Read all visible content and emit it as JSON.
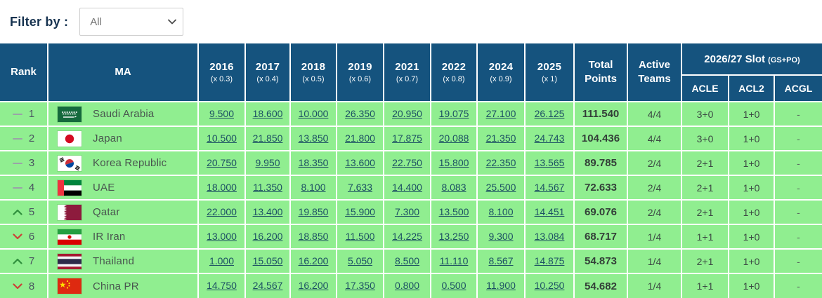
{
  "filter": {
    "label": "Filter by :",
    "selected_option": "All"
  },
  "colors": {
    "header_bg": "#15537e",
    "row_bg": "#90ee90",
    "link_text": "#1c5063",
    "trend_up": "#2f8f3c",
    "trend_down": "#cc4136",
    "trend_same": "#9aa3a7"
  },
  "table": {
    "headers": {
      "rank": "Rank",
      "ma": "MA",
      "total": "Total Points",
      "active": "Active Teams",
      "slot": "2026/27 Slot",
      "slot_suffix": "(GS+PO)"
    },
    "year_columns": [
      {
        "year": "2016",
        "mult": "(x 0.3)"
      },
      {
        "year": "2017",
        "mult": "(x 0.4)"
      },
      {
        "year": "2018",
        "mult": "(x 0.5)"
      },
      {
        "year": "2019",
        "mult": "(x 0.6)"
      },
      {
        "year": "2021",
        "mult": "(x 0.7)"
      },
      {
        "year": "2022",
        "mult": "(x 0.8)"
      },
      {
        "year": "2024",
        "mult": "(x 0.9)"
      },
      {
        "year": "2025",
        "mult": "(x 1)"
      }
    ],
    "slot_columns": [
      "ACLE",
      "ACL2",
      "ACGL"
    ],
    "rows": [
      {
        "trend": "same",
        "rank": "1",
        "flag": "sa",
        "country": "Saudi Arabia",
        "values": [
          "9.500",
          "18.600",
          "10.000",
          "26.350",
          "20.950",
          "19.075",
          "27.100",
          "26.125"
        ],
        "total": "111.540",
        "active": "4/4",
        "acle": "3+0",
        "acl2": "1+0",
        "acgl": "-"
      },
      {
        "trend": "same",
        "rank": "2",
        "flag": "jp",
        "country": "Japan",
        "values": [
          "10.500",
          "21.850",
          "13.850",
          "21.800",
          "17.875",
          "20.088",
          "21.350",
          "24.743"
        ],
        "total": "104.436",
        "active": "4/4",
        "acle": "3+0",
        "acl2": "1+0",
        "acgl": "-"
      },
      {
        "trend": "same",
        "rank": "3",
        "flag": "kr",
        "country": "Korea Republic",
        "values": [
          "20.750",
          "9.950",
          "18.350",
          "13.600",
          "22.750",
          "15.800",
          "22.350",
          "13.565"
        ],
        "total": "89.785",
        "active": "2/4",
        "acle": "2+1",
        "acl2": "1+0",
        "acgl": "-"
      },
      {
        "trend": "same",
        "rank": "4",
        "flag": "ae",
        "country": "UAE",
        "values": [
          "18.000",
          "11.350",
          "8.100",
          "7.633",
          "14.400",
          "8.083",
          "25.500",
          "14.567"
        ],
        "total": "72.633",
        "active": "2/4",
        "acle": "2+1",
        "acl2": "1+0",
        "acgl": "-"
      },
      {
        "trend": "up",
        "rank": "5",
        "flag": "qa",
        "country": "Qatar",
        "values": [
          "22.000",
          "13.400",
          "19.850",
          "15.900",
          "7.300",
          "13.500",
          "8.100",
          "14.451"
        ],
        "total": "69.076",
        "active": "2/4",
        "acle": "2+1",
        "acl2": "1+0",
        "acgl": "-"
      },
      {
        "trend": "down",
        "rank": "6",
        "flag": "ir",
        "country": "IR Iran",
        "values": [
          "13.000",
          "16.200",
          "18.850",
          "11.500",
          "14.225",
          "13.250",
          "9.300",
          "13.084"
        ],
        "total": "68.717",
        "active": "1/4",
        "acle": "1+1",
        "acl2": "1+0",
        "acgl": "-"
      },
      {
        "trend": "up",
        "rank": "7",
        "flag": "th",
        "country": "Thailand",
        "values": [
          "1.000",
          "15.050",
          "16.200",
          "5.050",
          "8.500",
          "11.110",
          "8.567",
          "14.875"
        ],
        "total": "54.873",
        "active": "1/4",
        "acle": "2+1",
        "acl2": "1+0",
        "acgl": "-"
      },
      {
        "trend": "down",
        "rank": "8",
        "flag": "cn",
        "country": "China PR",
        "values": [
          "14.750",
          "24.567",
          "16.200",
          "17.350",
          "0.800",
          "0.500",
          "11.900",
          "10.250"
        ],
        "total": "54.682",
        "active": "1/4",
        "acle": "1+1",
        "acl2": "1+0",
        "acgl": "-"
      }
    ]
  }
}
